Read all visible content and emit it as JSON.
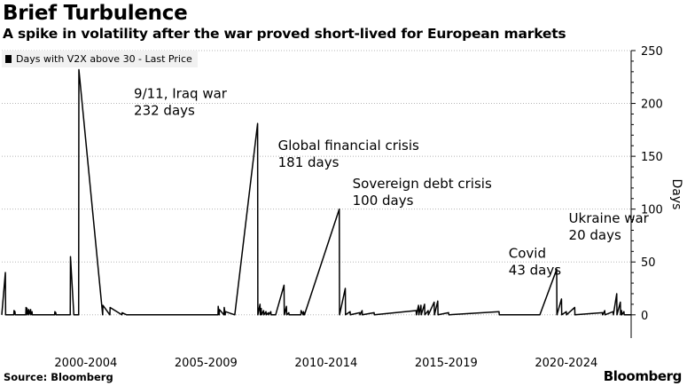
{
  "title": "Brief Turbulence",
  "subtitle": "A spike in volatility after the war proved short-lived for European markets",
  "legend_label": "Days with V2X above 30 - Last Price",
  "source": "Source: Bloomberg",
  "logo": "Bloomberg",
  "chart_data": {
    "type": "line",
    "title": "Brief Turbulence",
    "subtitle": "A spike in volatility after the war proved short-lived for European markets",
    "ylabel": "Days",
    "xlabel": "",
    "ylim": [
      -22,
      250
    ],
    "xlim": [
      1999.0,
      2025.2
    ],
    "y_ticks": [
      0,
      50,
      100,
      150,
      200,
      250
    ],
    "y_axis_position": "right",
    "x_tick_labels": [
      {
        "label": "2000-2004",
        "x": 2002.5
      },
      {
        "label": "2005-2009",
        "x": 2007.5
      },
      {
        "label": "2010-2014",
        "x": 2012.5
      },
      {
        "label": "2015-2019",
        "x": 2017.5
      },
      {
        "label": "2020-2024",
        "x": 2022.5
      }
    ],
    "grid": "horizontal-dotted",
    "legend_position": "top-left",
    "series": [
      {
        "name": "Days with V2X above 30 - Last Price",
        "color": "#000000",
        "x": [
          1999.0,
          1999.15,
          1999.16,
          1999.5,
          1999.51,
          1999.55,
          1999.56,
          2000.0,
          2000.01,
          2000.05,
          2000.06,
          2000.12,
          2000.13,
          2000.2,
          2000.21,
          2000.26,
          2000.27,
          2001.2,
          2001.21,
          2001.25,
          2001.26,
          2001.85,
          2001.86,
          2002.0,
          2002.01,
          2002.2,
          2002.21,
          2003.2,
          2003.21,
          2003.5,
          2003.51,
          2004.0,
          2004.01,
          2004.2,
          2004.21,
          2008.0,
          2008.01,
          2008.05,
          2008.06,
          2008.25,
          2008.26,
          2008.3,
          2008.31,
          2008.7,
          2009.65,
          2009.66,
          2009.75,
          2009.76,
          2009.8,
          2009.81,
          2009.9,
          2009.91,
          2010.0,
          2010.01,
          2010.1,
          2010.11,
          2010.2,
          2010.21,
          2010.4,
          2010.75,
          2010.76,
          2010.85,
          2010.86,
          2010.95,
          2010.96,
          2011.45,
          2011.46,
          2011.55,
          2011.56,
          2011.6,
          2013.05,
          2013.06,
          2013.3,
          2013.31,
          2013.5,
          2013.51,
          2013.9,
          2013.91,
          2014.0,
          2014.01,
          2014.5,
          2014.51,
          2016.25,
          2016.26,
          2016.35,
          2016.36,
          2016.45,
          2016.46,
          2016.6,
          2016.61,
          2016.75,
          2016.76,
          2017.0,
          2017.01,
          2017.15,
          2017.16,
          2017.6,
          2017.61,
          2019.7,
          2019.71,
          2021.4,
          2022.1,
          2022.11,
          2022.3,
          2022.31,
          2022.5,
          2022.51,
          2022.85,
          2022.86,
          2024.0,
          2024.01,
          2024.1,
          2024.11,
          2024.45,
          2024.46,
          2024.6,
          2024.61,
          2024.75,
          2024.76,
          2024.8,
          2024.81,
          2024.9,
          2024.91,
          2025.2
        ],
        "y": [
          0,
          40,
          0,
          0,
          4,
          3,
          0,
          0,
          7,
          6,
          0,
          5,
          0,
          5,
          0,
          3,
          0,
          0,
          3,
          2,
          0,
          0,
          55,
          0,
          0,
          0,
          232,
          0,
          9,
          0,
          7,
          0,
          2,
          0,
          0,
          0,
          8,
          0,
          5,
          0,
          7,
          0,
          3,
          0,
          181,
          0,
          10,
          0,
          6,
          0,
          4,
          0,
          3,
          0,
          2,
          0,
          3,
          0,
          0,
          28,
          0,
          8,
          0,
          2,
          0,
          0,
          4,
          0,
          3,
          0,
          100,
          0,
          25,
          0,
          3,
          0,
          2,
          0,
          4,
          0,
          2,
          0,
          4,
          0,
          9,
          0,
          9,
          0,
          10,
          0,
          4,
          0,
          12,
          0,
          13,
          0,
          2,
          0,
          3,
          0,
          0,
          43,
          0,
          15,
          0,
          3,
          0,
          7,
          0,
          2,
          0,
          4,
          0,
          3,
          0,
          20,
          0,
          12,
          0,
          4,
          0,
          3,
          0,
          0
        ]
      }
    ],
    "annotations": [
      {
        "lines": [
          "9/11, Iraq war",
          "232 days"
        ],
        "x": 2004.5,
        "y": 205
      },
      {
        "lines": [
          "Global financial crisis",
          "181 days"
        ],
        "x": 2010.5,
        "y": 156
      },
      {
        "lines": [
          "Sovereign debt crisis",
          "100 days"
        ],
        "x": 2013.6,
        "y": 120
      },
      {
        "lines": [
          "Covid",
          "43 days"
        ],
        "x": 2020.1,
        "y": 54
      },
      {
        "lines": [
          "Ukraine war",
          "20 days"
        ],
        "x": 2022.6,
        "y": 87
      }
    ]
  }
}
